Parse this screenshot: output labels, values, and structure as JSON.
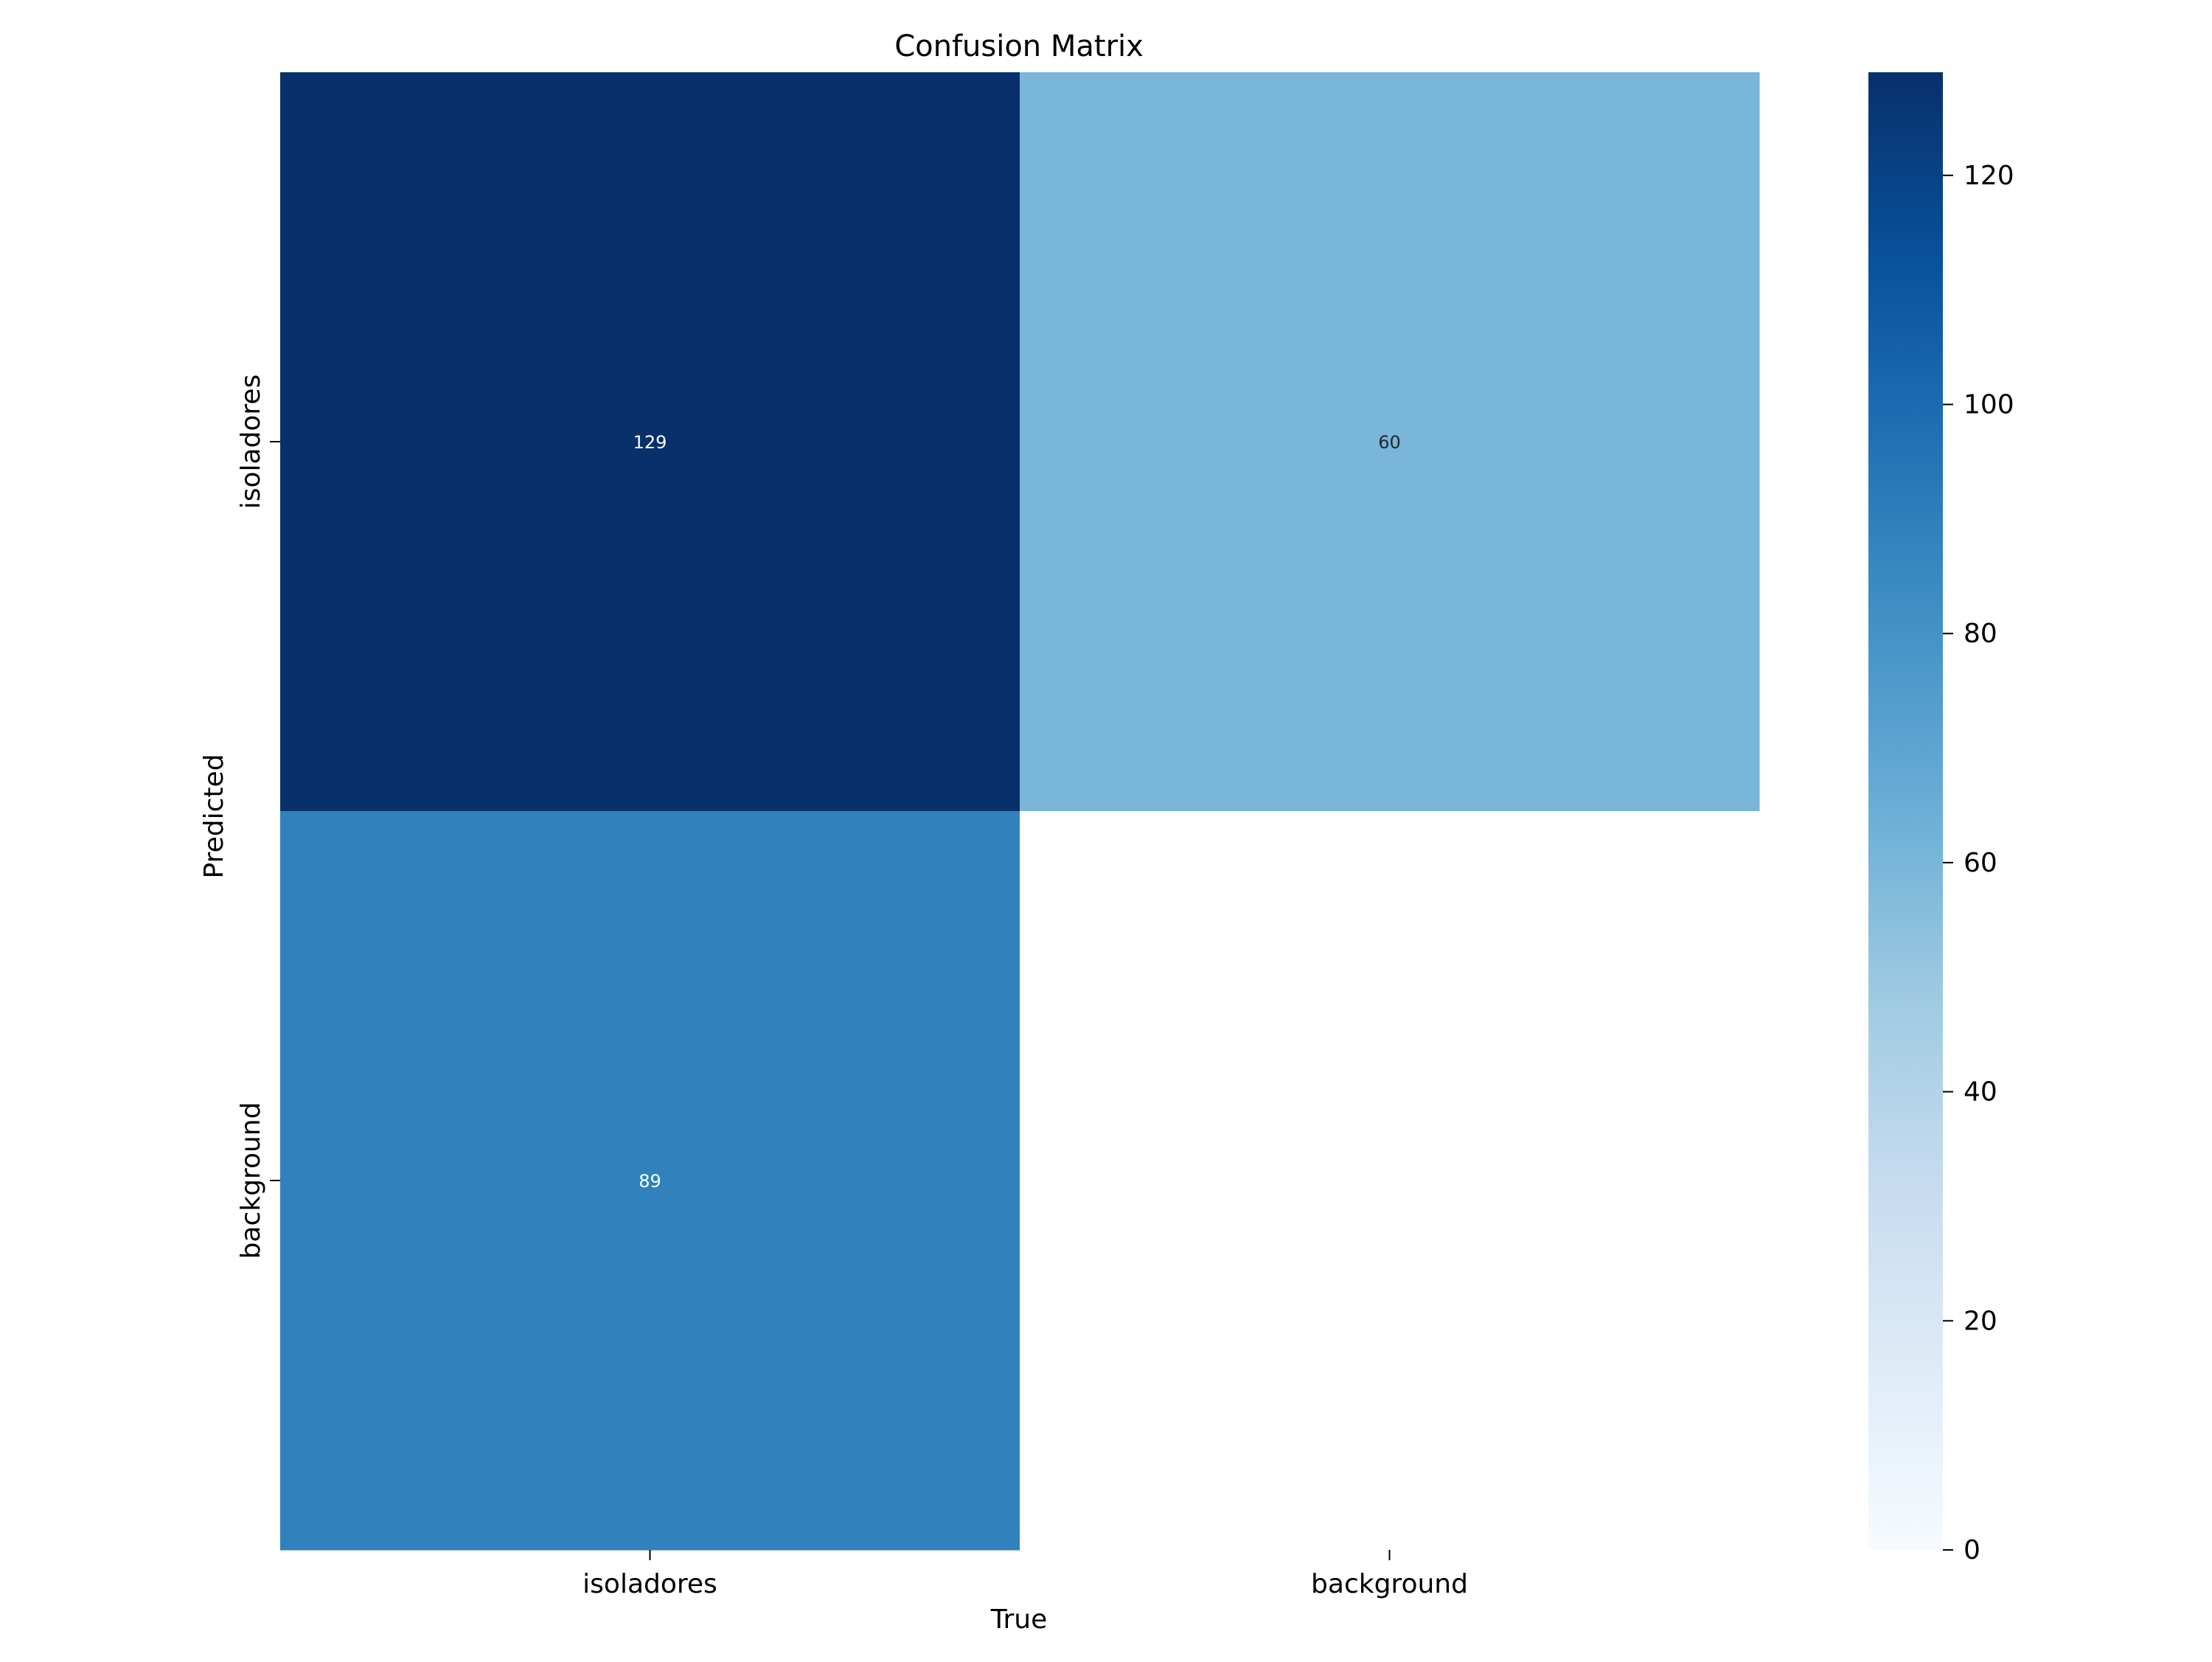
{
  "chart_data": {
    "type": "heatmap",
    "title": "Confusion Matrix",
    "xlabel": "True",
    "ylabel": "Predicted",
    "x_categories": [
      "isoladores",
      "background"
    ],
    "y_categories": [
      "isoladores",
      "background"
    ],
    "values": [
      [
        129,
        60
      ],
      [
        89,
        null
      ]
    ],
    "cell_labels": [
      [
        "129",
        "60"
      ],
      [
        "89",
        ""
      ]
    ],
    "colorbar": {
      "range": [
        0,
        129
      ],
      "ticks": [
        0,
        20,
        40,
        60,
        80,
        100,
        120
      ],
      "tick_labels": [
        "0",
        "20",
        "40",
        "60",
        "80",
        "100",
        "120"
      ],
      "colormap": "Blues",
      "colors": [
        "#f7fbff",
        "#deebf7",
        "#c6dbef",
        "#9ecae1",
        "#6baed6",
        "#4292c6",
        "#2171b5",
        "#08519c",
        "#08306b"
      ]
    },
    "grid": false
  }
}
